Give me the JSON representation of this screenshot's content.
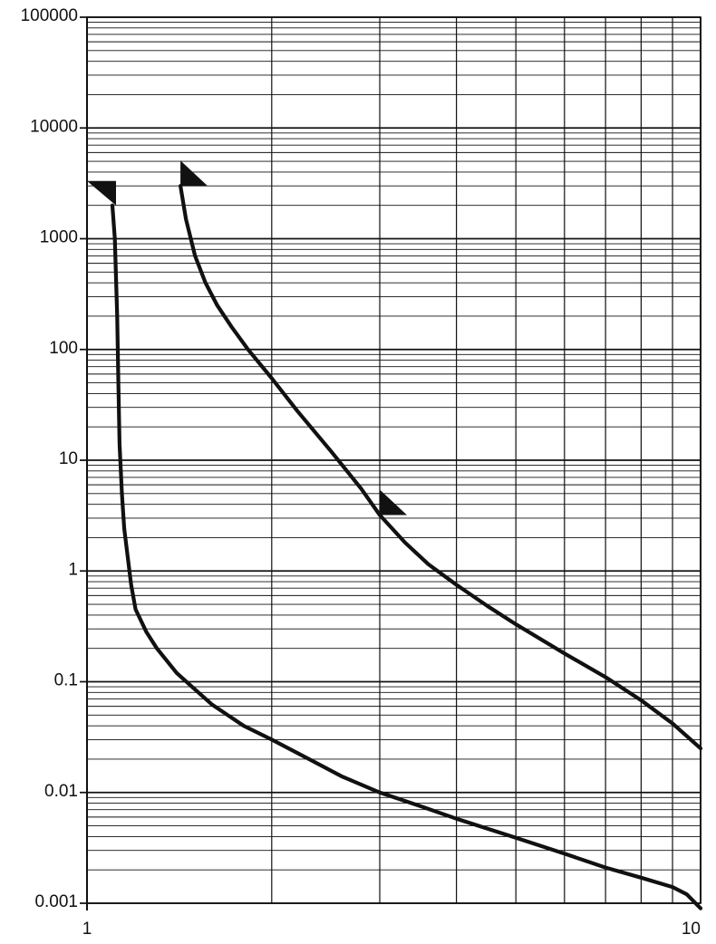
{
  "chart_data": {
    "type": "line",
    "title": "",
    "xlabel": "",
    "ylabel": "",
    "x_scale": "log",
    "y_scale": "log",
    "xlim": [
      1,
      10
    ],
    "ylim": [
      0.001,
      100000
    ],
    "grid": true,
    "x_tick_labels": [
      "1",
      "10"
    ],
    "y_tick_labels": [
      "100000",
      "10000",
      "1000",
      "100",
      "10",
      "1",
      "0.1",
      "0.01",
      "0.001"
    ],
    "series": [
      {
        "x": [
          1.1,
          1.11,
          1.12,
          1.125,
          1.13,
          1.14,
          1.15,
          1.18,
          1.2,
          1.25,
          1.3,
          1.4,
          1.5,
          1.6,
          1.8,
          2.0,
          2.3,
          2.6,
          3.0,
          3.5,
          4.0,
          5.0,
          6.0,
          7.0,
          8.0,
          9.0,
          9.5,
          10.0
        ],
        "y": [
          2000,
          1000,
          200,
          50,
          14,
          5,
          2.4,
          0.75,
          0.45,
          0.28,
          0.2,
          0.12,
          0.085,
          0.062,
          0.04,
          0.03,
          0.02,
          0.014,
          0.01,
          0.0075,
          0.0058,
          0.0039,
          0.0028,
          0.0021,
          0.0017,
          0.0014,
          0.0012,
          0.0009
        ]
      },
      {
        "x": [
          1.42,
          1.45,
          1.5,
          1.56,
          1.63,
          1.72,
          1.83,
          2.0,
          2.2,
          2.5,
          2.8,
          3.0,
          3.3,
          3.6,
          4.0,
          4.5,
          5.0,
          6.0,
          7.0,
          8.0,
          9.0,
          10.0
        ],
        "y": [
          3000,
          1500,
          700,
          400,
          250,
          160,
          100,
          55,
          28,
          12,
          5.5,
          3.2,
          1.8,
          1.15,
          0.75,
          0.48,
          0.33,
          0.18,
          0.11,
          0.068,
          0.042,
          0.025
        ]
      }
    ],
    "markers": [
      {
        "x": 1.1,
        "y": 2000,
        "shape": "triangle",
        "direction": "up-left"
      },
      {
        "x": 1.42,
        "y": 3000,
        "shape": "triangle",
        "direction": "up-right"
      },
      {
        "x": 3.0,
        "y": 3.2,
        "shape": "triangle",
        "direction": "up-right"
      }
    ],
    "colors": {
      "line": "#111111",
      "grid": "#111111"
    }
  }
}
